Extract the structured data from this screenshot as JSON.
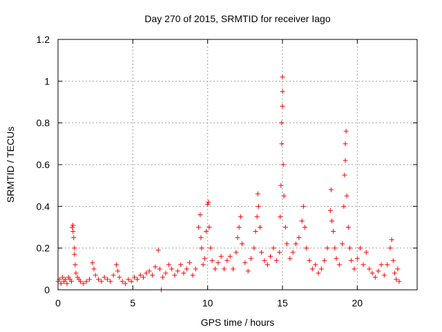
{
  "chart_data": {
    "type": "scatter",
    "title": "Day 270 of 2015, SRMTID for receiver Iago",
    "xlabel": "GPS time / hours",
    "ylabel": "SRMTID / TECUs",
    "xlim": [
      0,
      24
    ],
    "ylim": [
      0,
      1.2
    ],
    "xticks": [
      0,
      5,
      10,
      15,
      20
    ],
    "xtick_labels": [
      "0",
      "5",
      "10",
      "15",
      "20"
    ],
    "yticks": [
      0,
      0.2,
      0.4,
      0.6,
      0.8,
      1,
      1.2
    ],
    "ytick_labels": [
      "0",
      "0.2",
      "0.4",
      "0.6",
      "0.8",
      "1",
      "1.2"
    ],
    "grid": true,
    "marker": "+",
    "series": [
      {
        "name": "SRMTID",
        "color": "#ff0000",
        "points": [
          [
            0.0,
            0.04
          ],
          [
            0.1,
            0.05
          ],
          [
            0.2,
            0.03
          ],
          [
            0.3,
            0.06
          ],
          [
            0.4,
            0.04
          ],
          [
            0.5,
            0.05
          ],
          [
            0.6,
            0.03
          ],
          [
            0.7,
            0.06
          ],
          [
            0.8,
            0.05
          ],
          [
            0.9,
            0.04
          ],
          [
            0.95,
            0.3
          ],
          [
            1.0,
            0.31
          ],
          [
            1.0,
            0.28
          ],
          [
            1.05,
            0.25
          ],
          [
            1.1,
            0.2
          ],
          [
            1.1,
            0.17
          ],
          [
            1.15,
            0.12
          ],
          [
            1.2,
            0.08
          ],
          [
            1.3,
            0.06
          ],
          [
            1.4,
            0.05
          ],
          [
            1.5,
            0.04
          ],
          [
            1.7,
            0.03
          ],
          [
            1.9,
            0.04
          ],
          [
            2.1,
            0.05
          ],
          [
            2.3,
            0.13
          ],
          [
            2.4,
            0.1
          ],
          [
            2.5,
            0.07
          ],
          [
            2.7,
            0.05
          ],
          [
            2.9,
            0.04
          ],
          [
            3.1,
            0.06
          ],
          [
            3.3,
            0.05
          ],
          [
            3.5,
            0.04
          ],
          [
            3.7,
            0.07
          ],
          [
            3.9,
            0.12
          ],
          [
            4.0,
            0.09
          ],
          [
            4.1,
            0.06
          ],
          [
            4.3,
            0.04
          ],
          [
            4.5,
            0.03
          ],
          [
            4.7,
            0.05
          ],
          [
            4.9,
            0.04
          ],
          [
            5.1,
            0.06
          ],
          [
            5.3,
            0.05
          ],
          [
            5.5,
            0.07
          ],
          [
            5.7,
            0.06
          ],
          [
            5.9,
            0.08
          ],
          [
            6.1,
            0.09
          ],
          [
            6.3,
            0.07
          ],
          [
            6.5,
            0.11
          ],
          [
            6.7,
            0.19
          ],
          [
            6.8,
            0.1
          ],
          [
            6.9,
            0.0
          ],
          [
            7.0,
            0.06
          ],
          [
            7.2,
            0.08
          ],
          [
            7.4,
            0.12
          ],
          [
            7.6,
            0.1
          ],
          [
            7.8,
            0.07
          ],
          [
            8.0,
            0.09
          ],
          [
            8.2,
            0.12
          ],
          [
            8.4,
            0.08
          ],
          [
            8.6,
            0.1
          ],
          [
            8.8,
            0.13
          ],
          [
            9.0,
            0.07
          ],
          [
            9.2,
            0.1
          ],
          [
            9.4,
            0.3
          ],
          [
            9.5,
            0.36
          ],
          [
            9.55,
            0.25
          ],
          [
            9.6,
            0.2
          ],
          [
            9.7,
            0.12
          ],
          [
            9.8,
            0.15
          ],
          [
            9.9,
            0.28
          ],
          [
            10.0,
            0.41
          ],
          [
            10.05,
            0.42
          ],
          [
            10.1,
            0.3
          ],
          [
            10.2,
            0.2
          ],
          [
            10.3,
            0.14
          ],
          [
            10.5,
            0.1
          ],
          [
            10.7,
            0.13
          ],
          [
            10.9,
            0.16
          ],
          [
            11.1,
            0.1
          ],
          [
            11.3,
            0.14
          ],
          [
            11.5,
            0.16
          ],
          [
            11.7,
            0.1
          ],
          [
            11.9,
            0.18
          ],
          [
            12.0,
            0.25
          ],
          [
            12.1,
            0.3
          ],
          [
            12.2,
            0.35
          ],
          [
            12.3,
            0.22
          ],
          [
            12.5,
            0.13
          ],
          [
            12.7,
            0.09
          ],
          [
            12.9,
            0.15
          ],
          [
            13.1,
            0.2
          ],
          [
            13.2,
            0.28
          ],
          [
            13.3,
            0.35
          ],
          [
            13.35,
            0.46
          ],
          [
            13.4,
            0.4
          ],
          [
            13.5,
            0.3
          ],
          [
            13.6,
            0.18
          ],
          [
            13.8,
            0.14
          ],
          [
            14.0,
            0.12
          ],
          [
            14.2,
            0.16
          ],
          [
            14.4,
            0.2
          ],
          [
            14.6,
            0.14
          ],
          [
            14.8,
            0.18
          ],
          [
            14.85,
            0.35
          ],
          [
            14.9,
            0.5
          ],
          [
            14.95,
            0.7
          ],
          [
            14.95,
            0.8
          ],
          [
            15.0,
            0.95
          ],
          [
            15.0,
            1.02
          ],
          [
            15.0,
            0.88
          ],
          [
            15.05,
            0.6
          ],
          [
            15.1,
            0.45
          ],
          [
            15.2,
            0.3
          ],
          [
            15.3,
            0.22
          ],
          [
            15.5,
            0.15
          ],
          [
            15.7,
            0.18
          ],
          [
            15.9,
            0.22
          ],
          [
            16.1,
            0.25
          ],
          [
            16.3,
            0.33
          ],
          [
            16.4,
            0.4
          ],
          [
            16.5,
            0.3
          ],
          [
            16.6,
            0.2
          ],
          [
            16.8,
            0.14
          ],
          [
            17.0,
            0.1
          ],
          [
            17.2,
            0.12
          ],
          [
            17.4,
            0.08
          ],
          [
            17.6,
            0.1
          ],
          [
            17.8,
            0.14
          ],
          [
            18.0,
            0.2
          ],
          [
            18.2,
            0.38
          ],
          [
            18.25,
            0.48
          ],
          [
            18.3,
            0.33
          ],
          [
            18.4,
            0.28
          ],
          [
            18.5,
            0.2
          ],
          [
            18.6,
            0.15
          ],
          [
            18.8,
            0.12
          ],
          [
            19.0,
            0.22
          ],
          [
            19.1,
            0.4
          ],
          [
            19.15,
            0.55
          ],
          [
            19.2,
            0.62
          ],
          [
            19.2,
            0.7
          ],
          [
            19.25,
            0.76
          ],
          [
            19.3,
            0.45
          ],
          [
            19.4,
            0.3
          ],
          [
            19.5,
            0.2
          ],
          [
            19.6,
            0.14
          ],
          [
            19.8,
            0.1
          ],
          [
            20.0,
            0.15
          ],
          [
            20.2,
            0.2
          ],
          [
            20.4,
            0.12
          ],
          [
            20.6,
            0.18
          ],
          [
            20.8,
            0.1
          ],
          [
            21.0,
            0.08
          ],
          [
            21.2,
            0.06
          ],
          [
            21.4,
            0.09
          ],
          [
            21.6,
            0.12
          ],
          [
            21.8,
            0.07
          ],
          [
            22.0,
            0.12
          ],
          [
            22.2,
            0.2
          ],
          [
            22.3,
            0.24
          ],
          [
            22.4,
            0.14
          ],
          [
            22.5,
            0.08
          ],
          [
            22.6,
            0.05
          ],
          [
            22.7,
            0.1
          ],
          [
            22.8,
            0.04
          ]
        ]
      }
    ]
  }
}
